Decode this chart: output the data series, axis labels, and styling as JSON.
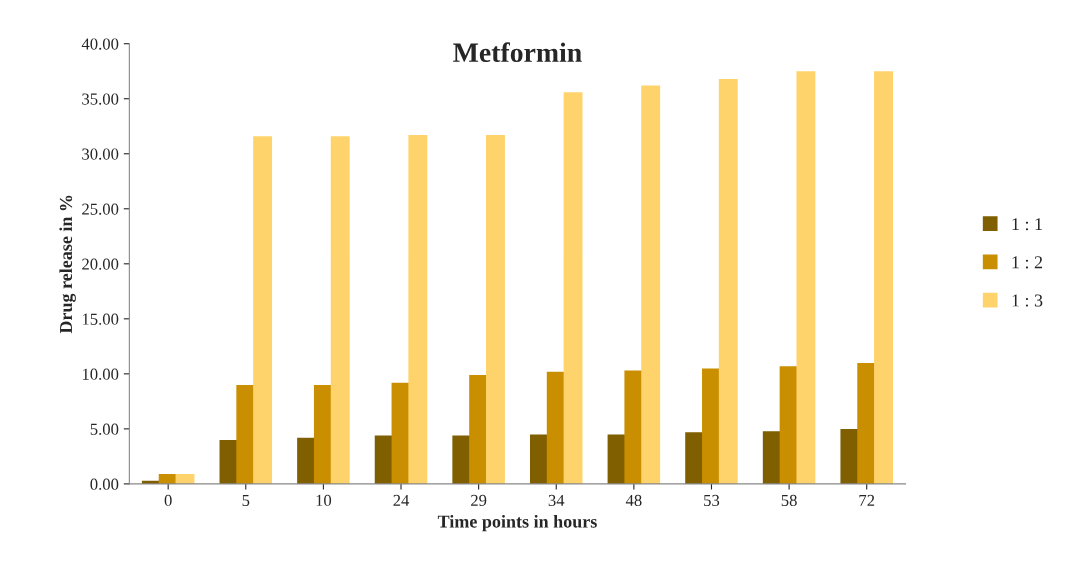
{
  "chart_data": {
    "type": "bar",
    "title": "Metformin",
    "xlabel": "Time points in hours",
    "ylabel": "Drug release in %",
    "categories": [
      "0",
      "5",
      "10",
      "24",
      "29",
      "34",
      "48",
      "53",
      "58",
      "72"
    ],
    "series": [
      {
        "name": "1 : 1",
        "color": "#7f5f00",
        "values": [
          0.2,
          3.9,
          4.1,
          4.3,
          4.3,
          4.4,
          4.4,
          4.6,
          4.7,
          4.9
        ]
      },
      {
        "name": "1 : 2",
        "color": "#c98f00",
        "values": [
          0.8,
          8.9,
          8.9,
          9.1,
          9.8,
          10.1,
          10.2,
          10.4,
          10.6,
          10.9
        ]
      },
      {
        "name": "1 : 3",
        "color": "#ffd36b",
        "values": [
          0.8,
          31.5,
          31.5,
          31.6,
          31.6,
          35.5,
          36.1,
          36.7,
          37.4,
          37.4
        ]
      }
    ],
    "ylim": [
      0,
      40
    ],
    "yticks": [
      {
        "value": 0,
        "label": "0.00"
      },
      {
        "value": 5,
        "label": "5.00"
      },
      {
        "value": 10,
        "label": "10.00"
      },
      {
        "value": 15,
        "label": "15.00"
      },
      {
        "value": 20,
        "label": "20.00"
      },
      {
        "value": 25,
        "label": "25.00"
      },
      {
        "value": 30,
        "label": "30.00"
      },
      {
        "value": 35,
        "label": "35.00"
      },
      {
        "value": 40,
        "label": "40.00"
      }
    ],
    "legend": "right",
    "grid": false
  }
}
